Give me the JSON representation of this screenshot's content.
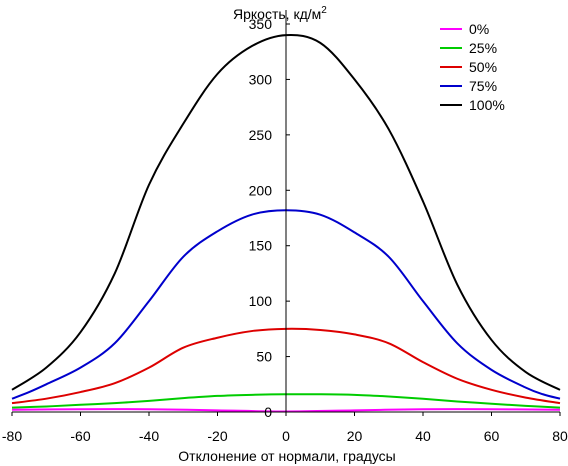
{
  "chart_data": {
    "type": "line",
    "title": "",
    "xlabel": "Отклонение от нормали, градусы",
    "ylabel": "Яркость, кд/м",
    "ylabel_sup": "2",
    "xlim": [
      -80,
      80
    ],
    "ylim": [
      0,
      350
    ],
    "xticks": [
      -80,
      -60,
      -40,
      -20,
      0,
      20,
      40,
      60,
      80
    ],
    "yticks": [
      0,
      50,
      100,
      150,
      200,
      250,
      300,
      350
    ],
    "grid": false,
    "legend_position": "top-right",
    "series": [
      {
        "name": "0%",
        "color": "#ff00ff",
        "x": [
          -80,
          -60,
          -40,
          -20,
          0,
          20,
          40,
          60,
          80
        ],
        "y": [
          2,
          2.5,
          2.5,
          1.5,
          0.5,
          1.5,
          2.5,
          2.5,
          2
        ]
      },
      {
        "name": "25%",
        "color": "#00cc00",
        "x": [
          -80,
          -70,
          -60,
          -50,
          -40,
          -30,
          -20,
          -10,
          0,
          10,
          20,
          30,
          40,
          50,
          60,
          70,
          80
        ],
        "y": [
          4,
          5,
          6.5,
          8,
          10,
          12.5,
          14.5,
          15.5,
          16,
          16,
          15.5,
          14,
          12,
          9.5,
          7.5,
          5.5,
          4
        ]
      },
      {
        "name": "50%",
        "color": "#dd0000",
        "x": [
          -80,
          -70,
          -60,
          -50,
          -40,
          -30,
          -20,
          -10,
          0,
          10,
          20,
          30,
          40,
          50,
          60,
          70,
          80
        ],
        "y": [
          8,
          12,
          18,
          26,
          40,
          58,
          67,
          73,
          75,
          74,
          70,
          62,
          45,
          30,
          20,
          13,
          8
        ]
      },
      {
        "name": "75%",
        "color": "#0000cc",
        "x": [
          -80,
          -75,
          -70,
          -60,
          -50,
          -40,
          -30,
          -20,
          -10,
          0,
          10,
          20,
          30,
          40,
          50,
          60,
          70,
          75,
          80
        ],
        "y": [
          12,
          18,
          25,
          40,
          62,
          100,
          140,
          163,
          178,
          182,
          178,
          162,
          140,
          100,
          62,
          38,
          22,
          16,
          12
        ]
      },
      {
        "name": "100%",
        "color": "#000000",
        "x": [
          -80,
          -70,
          -60,
          -50,
          -40,
          -30,
          -20,
          -10,
          0,
          10,
          20,
          30,
          40,
          50,
          60,
          70,
          80
        ],
        "y": [
          20,
          40,
          72,
          125,
          205,
          260,
          305,
          330,
          340,
          333,
          300,
          255,
          190,
          115,
          65,
          36,
          20
        ]
      }
    ]
  }
}
